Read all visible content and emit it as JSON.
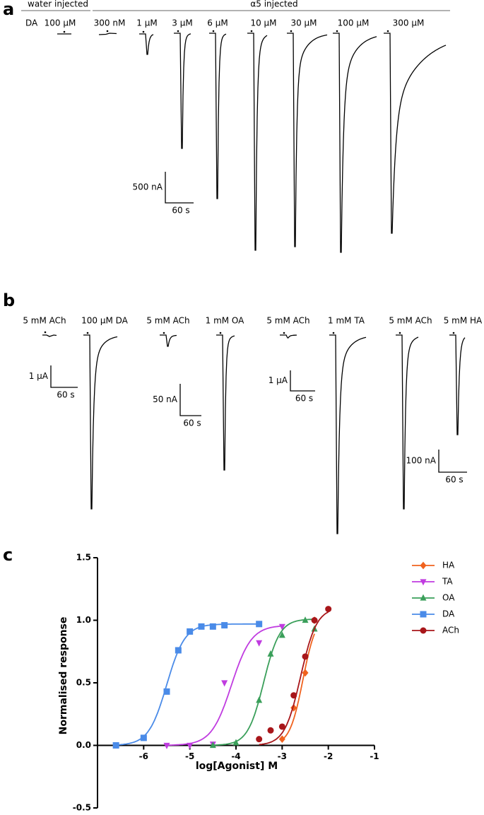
{
  "figure": {
    "panel_a": {
      "label": "a",
      "group_labels": [
        "water injected",
        "α5 injected"
      ],
      "agonist": "DA",
      "concentrations": [
        "100 μM",
        "300 nM",
        "1 μM",
        "3 μM",
        "6 μM",
        "10 μM",
        "30 μM",
        "100 μM",
        "300 μM"
      ],
      "scale_bar": {
        "current": "500 nA",
        "time": "60 s"
      }
    },
    "panel_b": {
      "label": "b",
      "conditions": [
        "5 mM ACh",
        "100 μM DA",
        "5 mM ACh",
        "1 mM OA",
        "5 mM ACh",
        "1 mM TA",
        "5 mM ACh",
        "5 mM HA"
      ],
      "scale_bars": [
        {
          "current": "1 μA",
          "time": "60 s"
        },
        {
          "current": "50 nA",
          "time": "60 s"
        },
        {
          "current": "1 μA",
          "time": "60 s"
        },
        {
          "current": "100 nA",
          "time": "60 s"
        }
      ]
    }
  },
  "chart_data": {
    "type": "line",
    "panel_label": "c",
    "x_label": "log[Agonist] M",
    "y_label": "Normalised response",
    "xlim": [
      -7,
      -1
    ],
    "xticks": [
      -6,
      -5,
      -4,
      -3,
      -2,
      -1
    ],
    "ylim": [
      -0.5,
      1.5
    ],
    "yticks": [
      {
        "value": -0.5,
        "label": "-0.5"
      },
      {
        "value": 0,
        "label": "0.0"
      },
      {
        "value": 0.5,
        "label": "0.5"
      },
      {
        "value": 1,
        "label": "1.0"
      },
      {
        "value": 1.5,
        "label": "1.5"
      }
    ],
    "series": [
      {
        "name": "HA",
        "color": "#f0621e",
        "marker": "diamond",
        "x": [
          -3,
          -2.75,
          -2.5,
          -2.3
        ],
        "values": [
          0.05,
          0.3,
          0.58,
          1.0
        ],
        "fit": {
          "log_ec50": -2.55,
          "top": 1.05,
          "hill": 3
        }
      },
      {
        "name": "TA",
        "color": "#c03ce0",
        "marker": "triangle-down",
        "x": [
          -5.5,
          -5,
          -4.5,
          -4.25,
          -3.5,
          -3
        ],
        "values": [
          0,
          0,
          0.01,
          0.5,
          0.82,
          0.95
        ],
        "fit": {
          "log_ec50": -4.1,
          "top": 0.96,
          "hill": 2
        }
      },
      {
        "name": "OA",
        "color": "#3a9f5a",
        "marker": "triangle-up",
        "x": [
          -4.5,
          -4,
          -3.5,
          -3.25,
          -3,
          -2.5,
          -2.3
        ],
        "values": [
          0,
          0.02,
          0.36,
          0.73,
          0.88,
          1.0,
          0.93
        ],
        "fit": {
          "log_ec50": -3.4,
          "top": 1.01,
          "hill": 2.5
        }
      },
      {
        "name": "DA",
        "color": "#4a8be8",
        "marker": "square",
        "x": [
          -6.6,
          -6,
          -5.5,
          -5.25,
          -5,
          -4.75,
          -4.5,
          -4.25,
          -3.5
        ],
        "values": [
          0,
          0.06,
          0.43,
          0.76,
          0.91,
          0.95,
          0.95,
          0.96,
          0.97
        ],
        "fit": {
          "log_ec50": -5.5,
          "top": 0.97,
          "hill": 2.2
        }
      },
      {
        "name": "ACh",
        "color": "#a8161a",
        "marker": "circle",
        "x": [
          -3.5,
          -3.25,
          -3,
          -2.75,
          -2.5,
          -2.3,
          -2
        ],
        "values": [
          0.05,
          0.12,
          0.15,
          0.4,
          0.71,
          1.0,
          1.09
        ],
        "fit": {
          "log_ec50": -2.6,
          "top": 1.1,
          "hill": 2.5
        }
      }
    ]
  }
}
